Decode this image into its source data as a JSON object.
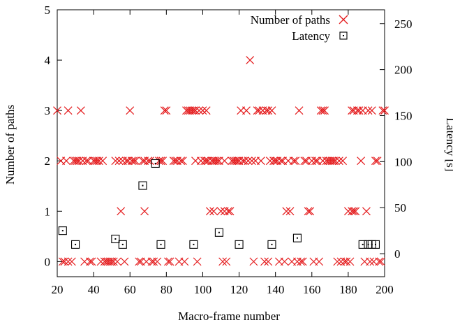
{
  "chart_data": {
    "type": "scatter",
    "xlabel": "Macro-frame number",
    "ylabel_left": "Number of paths",
    "ylabel_right": "Latency [s]",
    "xlim": [
      20,
      200
    ],
    "ylim_left": [
      -0.3,
      5
    ],
    "ylim_right": [
      -25,
      265
    ],
    "x_ticks": [
      "20",
      "40",
      "60",
      "80",
      "100",
      "120",
      "140",
      "160",
      "180",
      "200"
    ],
    "y_left_ticks": [
      "0",
      "1",
      "2",
      "3",
      "4",
      "5"
    ],
    "y_right_ticks": [
      "0",
      "50",
      "100",
      "150",
      "200",
      "250"
    ],
    "legend_position": "top-right",
    "series": [
      {
        "name": "Number of paths",
        "axis": "left",
        "marker": "x",
        "color": "#e41a1c",
        "points": [
          [
            20,
            3
          ],
          [
            22,
            2
          ],
          [
            23,
            0
          ],
          [
            24,
            0
          ],
          [
            25,
            2
          ],
          [
            26,
            3
          ],
          [
            26,
            0
          ],
          [
            28,
            0
          ],
          [
            29,
            2
          ],
          [
            30,
            2
          ],
          [
            31,
            2
          ],
          [
            32,
            2
          ],
          [
            33,
            3
          ],
          [
            34,
            2
          ],
          [
            35,
            0
          ],
          [
            36,
            2
          ],
          [
            37,
            2
          ],
          [
            38,
            0
          ],
          [
            39,
            0
          ],
          [
            40,
            2
          ],
          [
            41,
            2
          ],
          [
            42,
            2
          ],
          [
            43,
            2
          ],
          [
            44,
            0
          ],
          [
            45,
            2
          ],
          [
            46,
            0
          ],
          [
            47,
            0
          ],
          [
            48,
            0
          ],
          [
            49,
            0
          ],
          [
            50,
            0
          ],
          [
            51,
            0
          ],
          [
            52,
            2
          ],
          [
            53,
            0
          ],
          [
            54,
            2
          ],
          [
            55,
            1
          ],
          [
            56,
            2
          ],
          [
            57,
            0
          ],
          [
            58,
            2
          ],
          [
            59,
            2
          ],
          [
            60,
            3
          ],
          [
            61,
            2
          ],
          [
            62,
            2
          ],
          [
            63,
            2
          ],
          [
            65,
            0
          ],
          [
            66,
            0
          ],
          [
            67,
            2
          ],
          [
            68,
            1
          ],
          [
            68,
            2
          ],
          [
            69,
            0
          ],
          [
            70,
            2
          ],
          [
            71,
            2
          ],
          [
            72,
            0
          ],
          [
            73,
            0
          ],
          [
            75,
            0
          ],
          [
            76,
            2
          ],
          [
            77,
            2
          ],
          [
            78,
            2
          ],
          [
            79,
            3
          ],
          [
            80,
            3
          ],
          [
            81,
            0
          ],
          [
            82,
            0
          ],
          [
            84,
            2
          ],
          [
            85,
            2
          ],
          [
            86,
            2
          ],
          [
            87,
            0
          ],
          [
            88,
            2
          ],
          [
            89,
            2
          ],
          [
            90,
            0
          ],
          [
            91,
            3
          ],
          [
            92,
            3
          ],
          [
            93,
            3
          ],
          [
            94,
            3
          ],
          [
            95,
            3
          ],
          [
            96,
            3
          ],
          [
            96,
            2
          ],
          [
            97,
            0
          ],
          [
            98,
            3
          ],
          [
            99,
            2
          ],
          [
            100,
            3
          ],
          [
            101,
            2
          ],
          [
            102,
            2
          ],
          [
            102,
            3
          ],
          [
            103,
            2
          ],
          [
            104,
            1
          ],
          [
            105,
            2
          ],
          [
            106,
            2
          ],
          [
            106,
            1
          ],
          [
            107,
            2
          ],
          [
            108,
            2
          ],
          [
            109,
            2
          ],
          [
            110,
            1
          ],
          [
            111,
            0
          ],
          [
            112,
            1
          ],
          [
            112,
            2
          ],
          [
            113,
            0
          ],
          [
            114,
            1
          ],
          [
            115,
            1
          ],
          [
            116,
            2
          ],
          [
            117,
            2
          ],
          [
            118,
            2
          ],
          [
            119,
            2
          ],
          [
            120,
            2
          ],
          [
            121,
            3
          ],
          [
            122,
            2
          ],
          [
            123,
            2
          ],
          [
            124,
            3
          ],
          [
            125,
            2
          ],
          [
            126,
            4
          ],
          [
            127,
            2
          ],
          [
            128,
            0
          ],
          [
            129,
            2
          ],
          [
            130,
            3
          ],
          [
            131,
            3
          ],
          [
            132,
            2
          ],
          [
            133,
            3
          ],
          [
            134,
            0
          ],
          [
            135,
            3
          ],
          [
            136,
            0
          ],
          [
            136,
            3
          ],
          [
            137,
            2
          ],
          [
            138,
            3
          ],
          [
            139,
            2
          ],
          [
            140,
            2
          ],
          [
            141,
            2
          ],
          [
            142,
            0
          ],
          [
            143,
            2
          ],
          [
            144,
            2
          ],
          [
            145,
            0
          ],
          [
            146,
            1
          ],
          [
            147,
            2
          ],
          [
            148,
            1
          ],
          [
            149,
            0
          ],
          [
            150,
            2
          ],
          [
            151,
            2
          ],
          [
            152,
            0
          ],
          [
            153,
            3
          ],
          [
            154,
            0
          ],
          [
            155,
            0
          ],
          [
            156,
            2
          ],
          [
            157,
            2
          ],
          [
            158,
            1
          ],
          [
            159,
            1
          ],
          [
            160,
            2
          ],
          [
            161,
            0
          ],
          [
            162,
            2
          ],
          [
            163,
            2
          ],
          [
            164,
            0
          ],
          [
            165,
            3
          ],
          [
            166,
            2
          ],
          [
            166,
            3
          ],
          [
            167,
            3
          ],
          [
            168,
            2
          ],
          [
            169,
            2
          ],
          [
            170,
            2
          ],
          [
            171,
            2
          ],
          [
            172,
            2
          ],
          [
            173,
            2
          ],
          [
            174,
            0
          ],
          [
            175,
            2
          ],
          [
            176,
            0
          ],
          [
            177,
            2
          ],
          [
            178,
            0
          ],
          [
            179,
            0
          ],
          [
            180,
            1
          ],
          [
            181,
            0
          ],
          [
            182,
            1
          ],
          [
            182,
            3
          ],
          [
            183,
            1
          ],
          [
            183,
            3
          ],
          [
            184,
            1
          ],
          [
            185,
            3
          ],
          [
            186,
            3
          ],
          [
            187,
            2
          ],
          [
            188,
            3
          ],
          [
            189,
            0
          ],
          [
            190,
            1
          ],
          [
            191,
            3
          ],
          [
            192,
            0
          ],
          [
            193,
            3
          ],
          [
            194,
            0
          ],
          [
            195,
            2
          ],
          [
            196,
            2
          ],
          [
            197,
            0
          ],
          [
            198,
            0
          ],
          [
            199,
            3
          ],
          [
            200,
            3
          ]
        ]
      },
      {
        "name": "Latency",
        "axis": "right",
        "marker": "square",
        "color": "#000000",
        "points": [
          [
            23,
            25
          ],
          [
            30,
            10
          ],
          [
            52,
            16
          ],
          [
            56,
            10
          ],
          [
            67,
            74
          ],
          [
            74,
            98
          ],
          [
            77,
            10
          ],
          [
            95,
            10
          ],
          [
            109,
            23
          ],
          [
            120,
            10
          ],
          [
            138,
            10
          ],
          [
            152,
            17
          ],
          [
            188,
            10
          ],
          [
            191,
            10
          ],
          [
            193,
            10
          ],
          [
            195,
            10
          ]
        ]
      }
    ]
  }
}
